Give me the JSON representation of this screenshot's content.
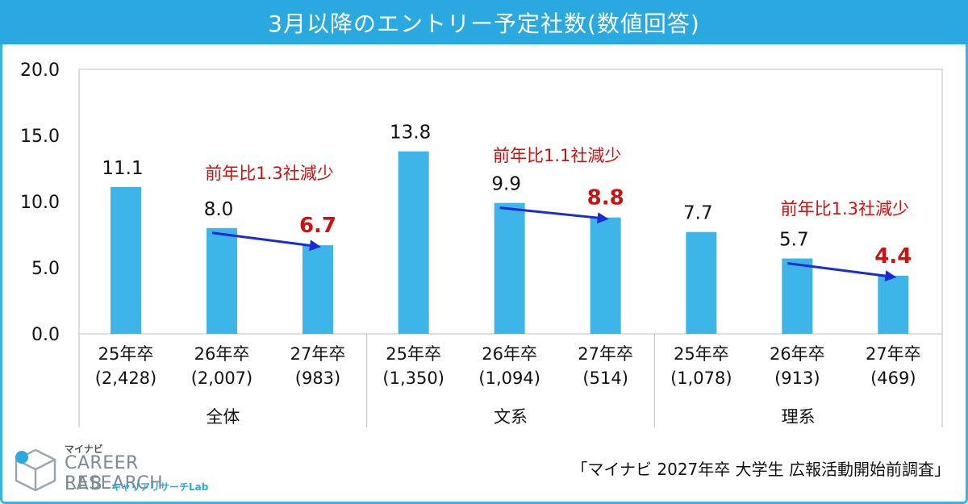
{
  "header": {
    "title": "3月以降のエントリー予定社数(数値回答)"
  },
  "chart_data": {
    "type": "bar",
    "title": "3月以降のエントリー予定社数(数値回答)",
    "ylim": [
      0,
      20
    ],
    "yticks": [
      "0.0",
      "5.0",
      "10.0",
      "15.0",
      "20.0"
    ],
    "bar_color": "#3db5e8",
    "groups": [
      {
        "name": "全体",
        "bars": [
          {
            "line1": "25年卒",
            "line2": "(2,428)",
            "value": 11.1,
            "label": "11.1",
            "highlight": false
          },
          {
            "line1": "26年卒",
            "line2": "(2,007)",
            "value": 8.0,
            "label": "8.0",
            "highlight": false
          },
          {
            "line1": "27年卒",
            "line2": "(983)",
            "value": 6.7,
            "label": "6.7",
            "highlight": true
          }
        ],
        "annotation": "前年比1.3社減少"
      },
      {
        "name": "文系",
        "bars": [
          {
            "line1": "25年卒",
            "line2": "(1,350)",
            "value": 13.8,
            "label": "13.8",
            "highlight": false
          },
          {
            "line1": "26年卒",
            "line2": "(1,094)",
            "value": 9.9,
            "label": "9.9",
            "highlight": false
          },
          {
            "line1": "27年卒",
            "line2": "(514)",
            "value": 8.8,
            "label": "8.8",
            "highlight": true
          }
        ],
        "annotation": "前年比1.1社減少"
      },
      {
        "name": "理系",
        "bars": [
          {
            "line1": "25年卒",
            "line2": "(1,078)",
            "value": 7.7,
            "label": "7.7",
            "highlight": false
          },
          {
            "line1": "26年卒",
            "line2": "(913)",
            "value": 5.7,
            "label": "5.7",
            "highlight": false
          },
          {
            "line1": "27年卒",
            "line2": "(469)",
            "value": 4.4,
            "label": "4.4",
            "highlight": true
          }
        ],
        "annotation": "前年比1.3社減少"
      }
    ]
  },
  "colors": {
    "header_bg": "#2aa8e0",
    "highlight_text": "#cc1111",
    "arrow": "#1a2bd6"
  },
  "logo": {
    "kana": "マイナビ",
    "line1": "CAREER RESEARCH",
    "line2": "LAB",
    "sub": "キャリアリサーチLab"
  },
  "source": "「マイナビ 2027年卒 大学生 広報活動開始前調査」"
}
